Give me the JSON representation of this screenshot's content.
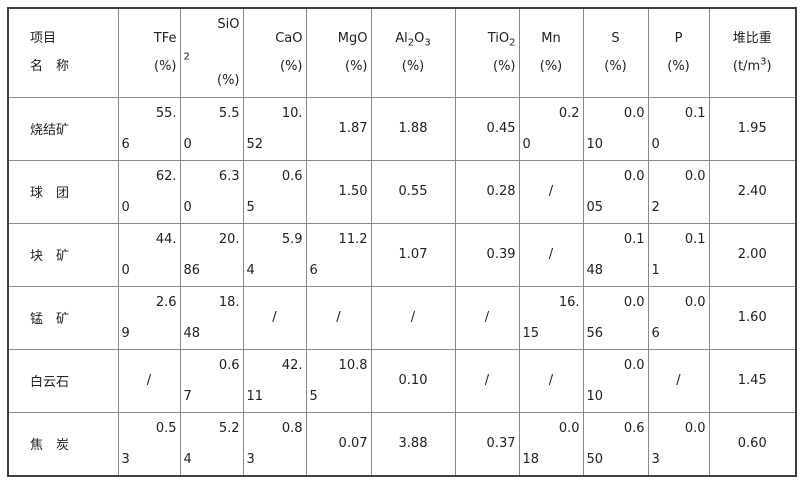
{
  "colors": {
    "text": "#212121",
    "grid_line": "#8a8a8a",
    "outer_border": "#3f3f3f",
    "background": "#ffffff"
  },
  "table": {
    "columns": [
      {
        "key": "name",
        "lines": [
          {
            "align": "leftpad",
            "segs": [
              {
                "t": "项目"
              }
            ]
          },
          {
            "align": "leftpad",
            "segs": [
              {
                "t": "名　称"
              }
            ]
          }
        ]
      },
      {
        "key": "tfe",
        "lines": [
          {
            "align": "right",
            "segs": [
              {
                "t": "TFe"
              }
            ]
          },
          {
            "align": "right",
            "segs": [
              {
                "t": "(%)"
              }
            ]
          }
        ]
      },
      {
        "key": "sio2",
        "lines": [
          {
            "align": "right",
            "segs": [
              {
                "t": "SiO"
              }
            ]
          },
          {
            "align": "left",
            "segs": [
              {
                "t": "2",
                "s": "sub"
              }
            ]
          },
          {
            "align": "right",
            "segs": [
              {
                "t": "(%)"
              }
            ]
          }
        ]
      },
      {
        "key": "cao",
        "lines": [
          {
            "align": "right",
            "segs": [
              {
                "t": "CaO"
              }
            ]
          },
          {
            "align": "right",
            "segs": [
              {
                "t": "(%)"
              }
            ]
          }
        ]
      },
      {
        "key": "mgo",
        "lines": [
          {
            "align": "right",
            "segs": [
              {
                "t": "MgO"
              }
            ]
          },
          {
            "align": "right",
            "segs": [
              {
                "t": "(%)"
              }
            ]
          }
        ]
      },
      {
        "key": "al2o3",
        "lines": [
          {
            "align": "center",
            "segs": [
              {
                "t": "Al"
              },
              {
                "t": "2",
                "s": "sub"
              },
              {
                "t": "O"
              },
              {
                "t": "3",
                "s": "sub"
              }
            ]
          },
          {
            "align": "center",
            "segs": [
              {
                "t": "(%)"
              }
            ]
          }
        ]
      },
      {
        "key": "tio2",
        "lines": [
          {
            "align": "right",
            "segs": [
              {
                "t": "TiO"
              },
              {
                "t": "2",
                "s": "sub"
              }
            ]
          },
          {
            "align": "right",
            "segs": [
              {
                "t": "(%)"
              }
            ]
          }
        ]
      },
      {
        "key": "mn",
        "lines": [
          {
            "align": "center",
            "segs": [
              {
                "t": "Mn"
              }
            ]
          },
          {
            "align": "center",
            "segs": [
              {
                "t": "(%)"
              }
            ]
          }
        ]
      },
      {
        "key": "s",
        "lines": [
          {
            "align": "center",
            "segs": [
              {
                "t": "S"
              }
            ]
          },
          {
            "align": "center",
            "segs": [
              {
                "t": "(%)"
              }
            ]
          }
        ]
      },
      {
        "key": "p",
        "lines": [
          {
            "align": "center",
            "segs": [
              {
                "t": "P"
              }
            ]
          },
          {
            "align": "center",
            "segs": [
              {
                "t": "(%)"
              }
            ]
          }
        ]
      },
      {
        "key": "bulk-density",
        "lines": [
          {
            "align": "center",
            "segs": [
              {
                "t": "堆比重"
              }
            ]
          },
          {
            "align": "center",
            "segs": [
              {
                "t": "(t/m"
              },
              {
                "t": "3",
                "s": "sup"
              },
              {
                "t": ")"
              }
            ]
          }
        ]
      }
    ],
    "rows": [
      {
        "key": "sinter",
        "name": "烧结矿",
        "cells": [
          {
            "l1": "55.",
            "l2": "6"
          },
          {
            "l1": "5.5",
            "l2": "0"
          },
          {
            "l1": "10.",
            "l2": "52"
          },
          {
            "v": "1.87",
            "align": "right"
          },
          {
            "v": "1.88",
            "align": "center"
          },
          {
            "v": "0.45",
            "align": "right"
          },
          {
            "l1": "0.2",
            "l2": "0"
          },
          {
            "l1": "0.0",
            "l2": "10"
          },
          {
            "l1": "0.1",
            "l2": "0"
          },
          {
            "v": "1.95",
            "align": "center"
          }
        ]
      },
      {
        "key": "pellet",
        "name": "球　团",
        "cells": [
          {
            "l1": "62.",
            "l2": "0"
          },
          {
            "l1": "6.3",
            "l2": "0"
          },
          {
            "l1": "0.6",
            "l2": "5"
          },
          {
            "v": "1.50",
            "align": "right"
          },
          {
            "v": "0.55",
            "align": "center"
          },
          {
            "v": "0.28",
            "align": "right"
          },
          {
            "v": "/",
            "align": "center"
          },
          {
            "l1": "0.0",
            "l2": "05"
          },
          {
            "l1": "0.0",
            "l2": "2"
          },
          {
            "v": "2.40",
            "align": "center"
          }
        ]
      },
      {
        "key": "lump-ore",
        "name": "块　矿",
        "cells": [
          {
            "l1": "44.",
            "l2": "0"
          },
          {
            "l1": "20.",
            "l2": "86"
          },
          {
            "l1": "5.9",
            "l2": "4"
          },
          {
            "l1": "11.2",
            "l2": "6"
          },
          {
            "v": "1.07",
            "align": "center"
          },
          {
            "v": "0.39",
            "align": "right"
          },
          {
            "v": "/",
            "align": "center"
          },
          {
            "l1": "0.1",
            "l2": "48"
          },
          {
            "l1": "0.1",
            "l2": "1"
          },
          {
            "v": "2.00",
            "align": "center"
          }
        ]
      },
      {
        "key": "manganese-ore",
        "name": "锰　矿",
        "cells": [
          {
            "l1": "2.6",
            "l2": "9"
          },
          {
            "l1": "18.",
            "l2": "48"
          },
          {
            "v": "/",
            "align": "center"
          },
          {
            "v": "/",
            "align": "center"
          },
          {
            "v": "/",
            "align": "center"
          },
          {
            "v": "/",
            "align": "center"
          },
          {
            "l1": "16.",
            "l2": "15"
          },
          {
            "l1": "0.0",
            "l2": "56"
          },
          {
            "l1": "0.0",
            "l2": "6"
          },
          {
            "v": "1.60",
            "align": "center"
          }
        ]
      },
      {
        "key": "dolomite",
        "name": "白云石",
        "cells": [
          {
            "v": "/",
            "align": "center"
          },
          {
            "l1": "0.6",
            "l2": "7"
          },
          {
            "l1": "42.",
            "l2": "11"
          },
          {
            "l1": "10.8",
            "l2": "5"
          },
          {
            "v": "0.10",
            "align": "center"
          },
          {
            "v": "/",
            "align": "center"
          },
          {
            "v": "/",
            "align": "center"
          },
          {
            "l1": "0.0",
            "l2": "10"
          },
          {
            "v": "/",
            "align": "center"
          },
          {
            "v": "1.45",
            "align": "center"
          }
        ]
      },
      {
        "key": "coke",
        "name": "焦　炭",
        "cells": [
          {
            "l1": "0.5",
            "l2": "3"
          },
          {
            "l1": "5.2",
            "l2": "4"
          },
          {
            "l1": "0.8",
            "l2": "3"
          },
          {
            "v": "0.07",
            "align": "right"
          },
          {
            "v": "3.88",
            "align": "center"
          },
          {
            "v": "0.37",
            "align": "right"
          },
          {
            "l1": "0.0",
            "l2": "18"
          },
          {
            "l1": "0.6",
            "l2": "50"
          },
          {
            "l1": "0.0",
            "l2": "3"
          },
          {
            "v": "0.60",
            "align": "center"
          }
        ]
      }
    ]
  }
}
